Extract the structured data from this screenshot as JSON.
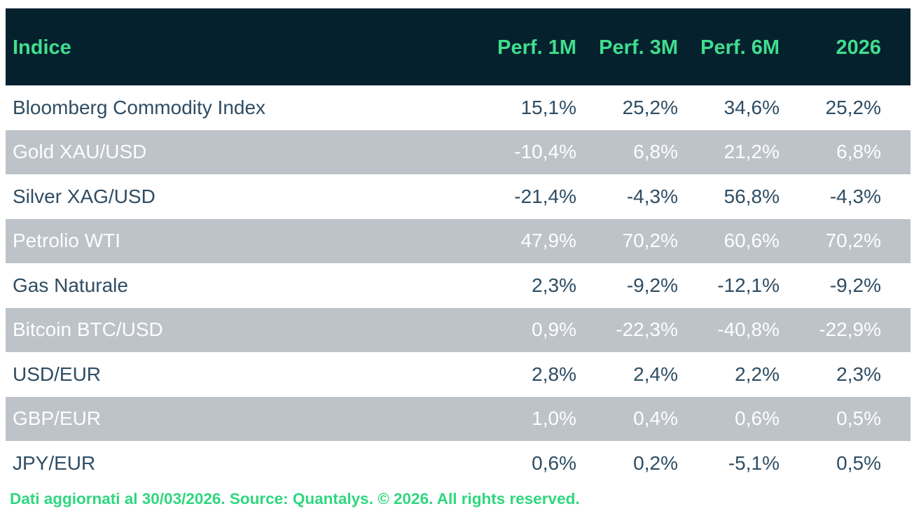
{
  "table": {
    "header": {
      "index_label": "Indice",
      "columns": [
        "Perf. 1M",
        "Perf. 3M",
        "Perf. 6M",
        "2026"
      ]
    },
    "rows": [
      {
        "name": "Bloomberg Commodity Index",
        "values": [
          "15,1%",
          "25,2%",
          "34,6%",
          "25,2%"
        ]
      },
      {
        "name": "Gold XAU/USD",
        "values": [
          "-10,4%",
          "6,8%",
          "21,2%",
          "6,8%"
        ]
      },
      {
        "name": "Silver XAG/USD",
        "values": [
          "-21,4%",
          "-4,3%",
          "56,8%",
          "-4,3%"
        ]
      },
      {
        "name": "Petrolio WTI",
        "values": [
          "47,9%",
          "70,2%",
          "60,6%",
          "70,2%"
        ]
      },
      {
        "name": "Gas Naturale",
        "values": [
          "2,3%",
          "-9,2%",
          "-12,1%",
          "-9,2%"
        ]
      },
      {
        "name": "Bitcoin BTC/USD",
        "values": [
          "0,9%",
          "-22,3%",
          "-40,8%",
          "-22,9%"
        ]
      },
      {
        "name": "USD/EUR",
        "values": [
          "2,8%",
          "2,4%",
          "2,2%",
          "2,3%"
        ]
      },
      {
        "name": "GBP/EUR",
        "values": [
          "1,0%",
          "0,4%",
          "0,6%",
          "0,5%"
        ]
      },
      {
        "name": "JPY/EUR",
        "values": [
          "0,6%",
          "0,2%",
          "-5,1%",
          "0,5%"
        ]
      }
    ]
  },
  "footer": {
    "text": "Dati aggiornati al 30/03/2026. Source: Quantalys. © 2026. All rights reserved."
  },
  "colors": {
    "header_bg": "#05212e",
    "accent_green": "#40de8d",
    "footer_green": "#2fd77f",
    "row_alt_bg": "#bdc3c9",
    "text_dark": "#2f4d63",
    "text_on_alt": "#fdfefe"
  },
  "chart_data": {
    "type": "table",
    "title": "Indice — performance table",
    "columns": [
      "Indice",
      "Perf. 1M",
      "Perf. 3M",
      "Perf. 6M",
      "2026"
    ],
    "units": "percent",
    "decimal_separator": ",",
    "rows": [
      [
        "Bloomberg Commodity Index",
        15.1,
        25.2,
        34.6,
        25.2
      ],
      [
        "Gold XAU/USD",
        -10.4,
        6.8,
        21.2,
        6.8
      ],
      [
        "Silver XAG/USD",
        -21.4,
        -4.3,
        56.8,
        -4.3
      ],
      [
        "Petrolio WTI",
        47.9,
        70.2,
        60.6,
        70.2
      ],
      [
        "Gas Naturale",
        2.3,
        -9.2,
        -12.1,
        -9.2
      ],
      [
        "Bitcoin BTC/USD",
        0.9,
        -22.3,
        -40.8,
        -22.9
      ],
      [
        "USD/EUR",
        2.8,
        2.4,
        2.2,
        2.3
      ],
      [
        "GBP/EUR",
        1.0,
        0.4,
        0.6,
        0.5
      ],
      [
        "JPY/EUR",
        0.6,
        0.2,
        -5.1,
        0.5
      ]
    ],
    "footnote": "Dati aggiornati al 30/03/2026. Source: Quantalys. © 2026. All rights reserved.",
    "layout": {
      "alternating_rows": true,
      "header_style": "dark-navy with green text",
      "value_alignment": "right"
    }
  }
}
